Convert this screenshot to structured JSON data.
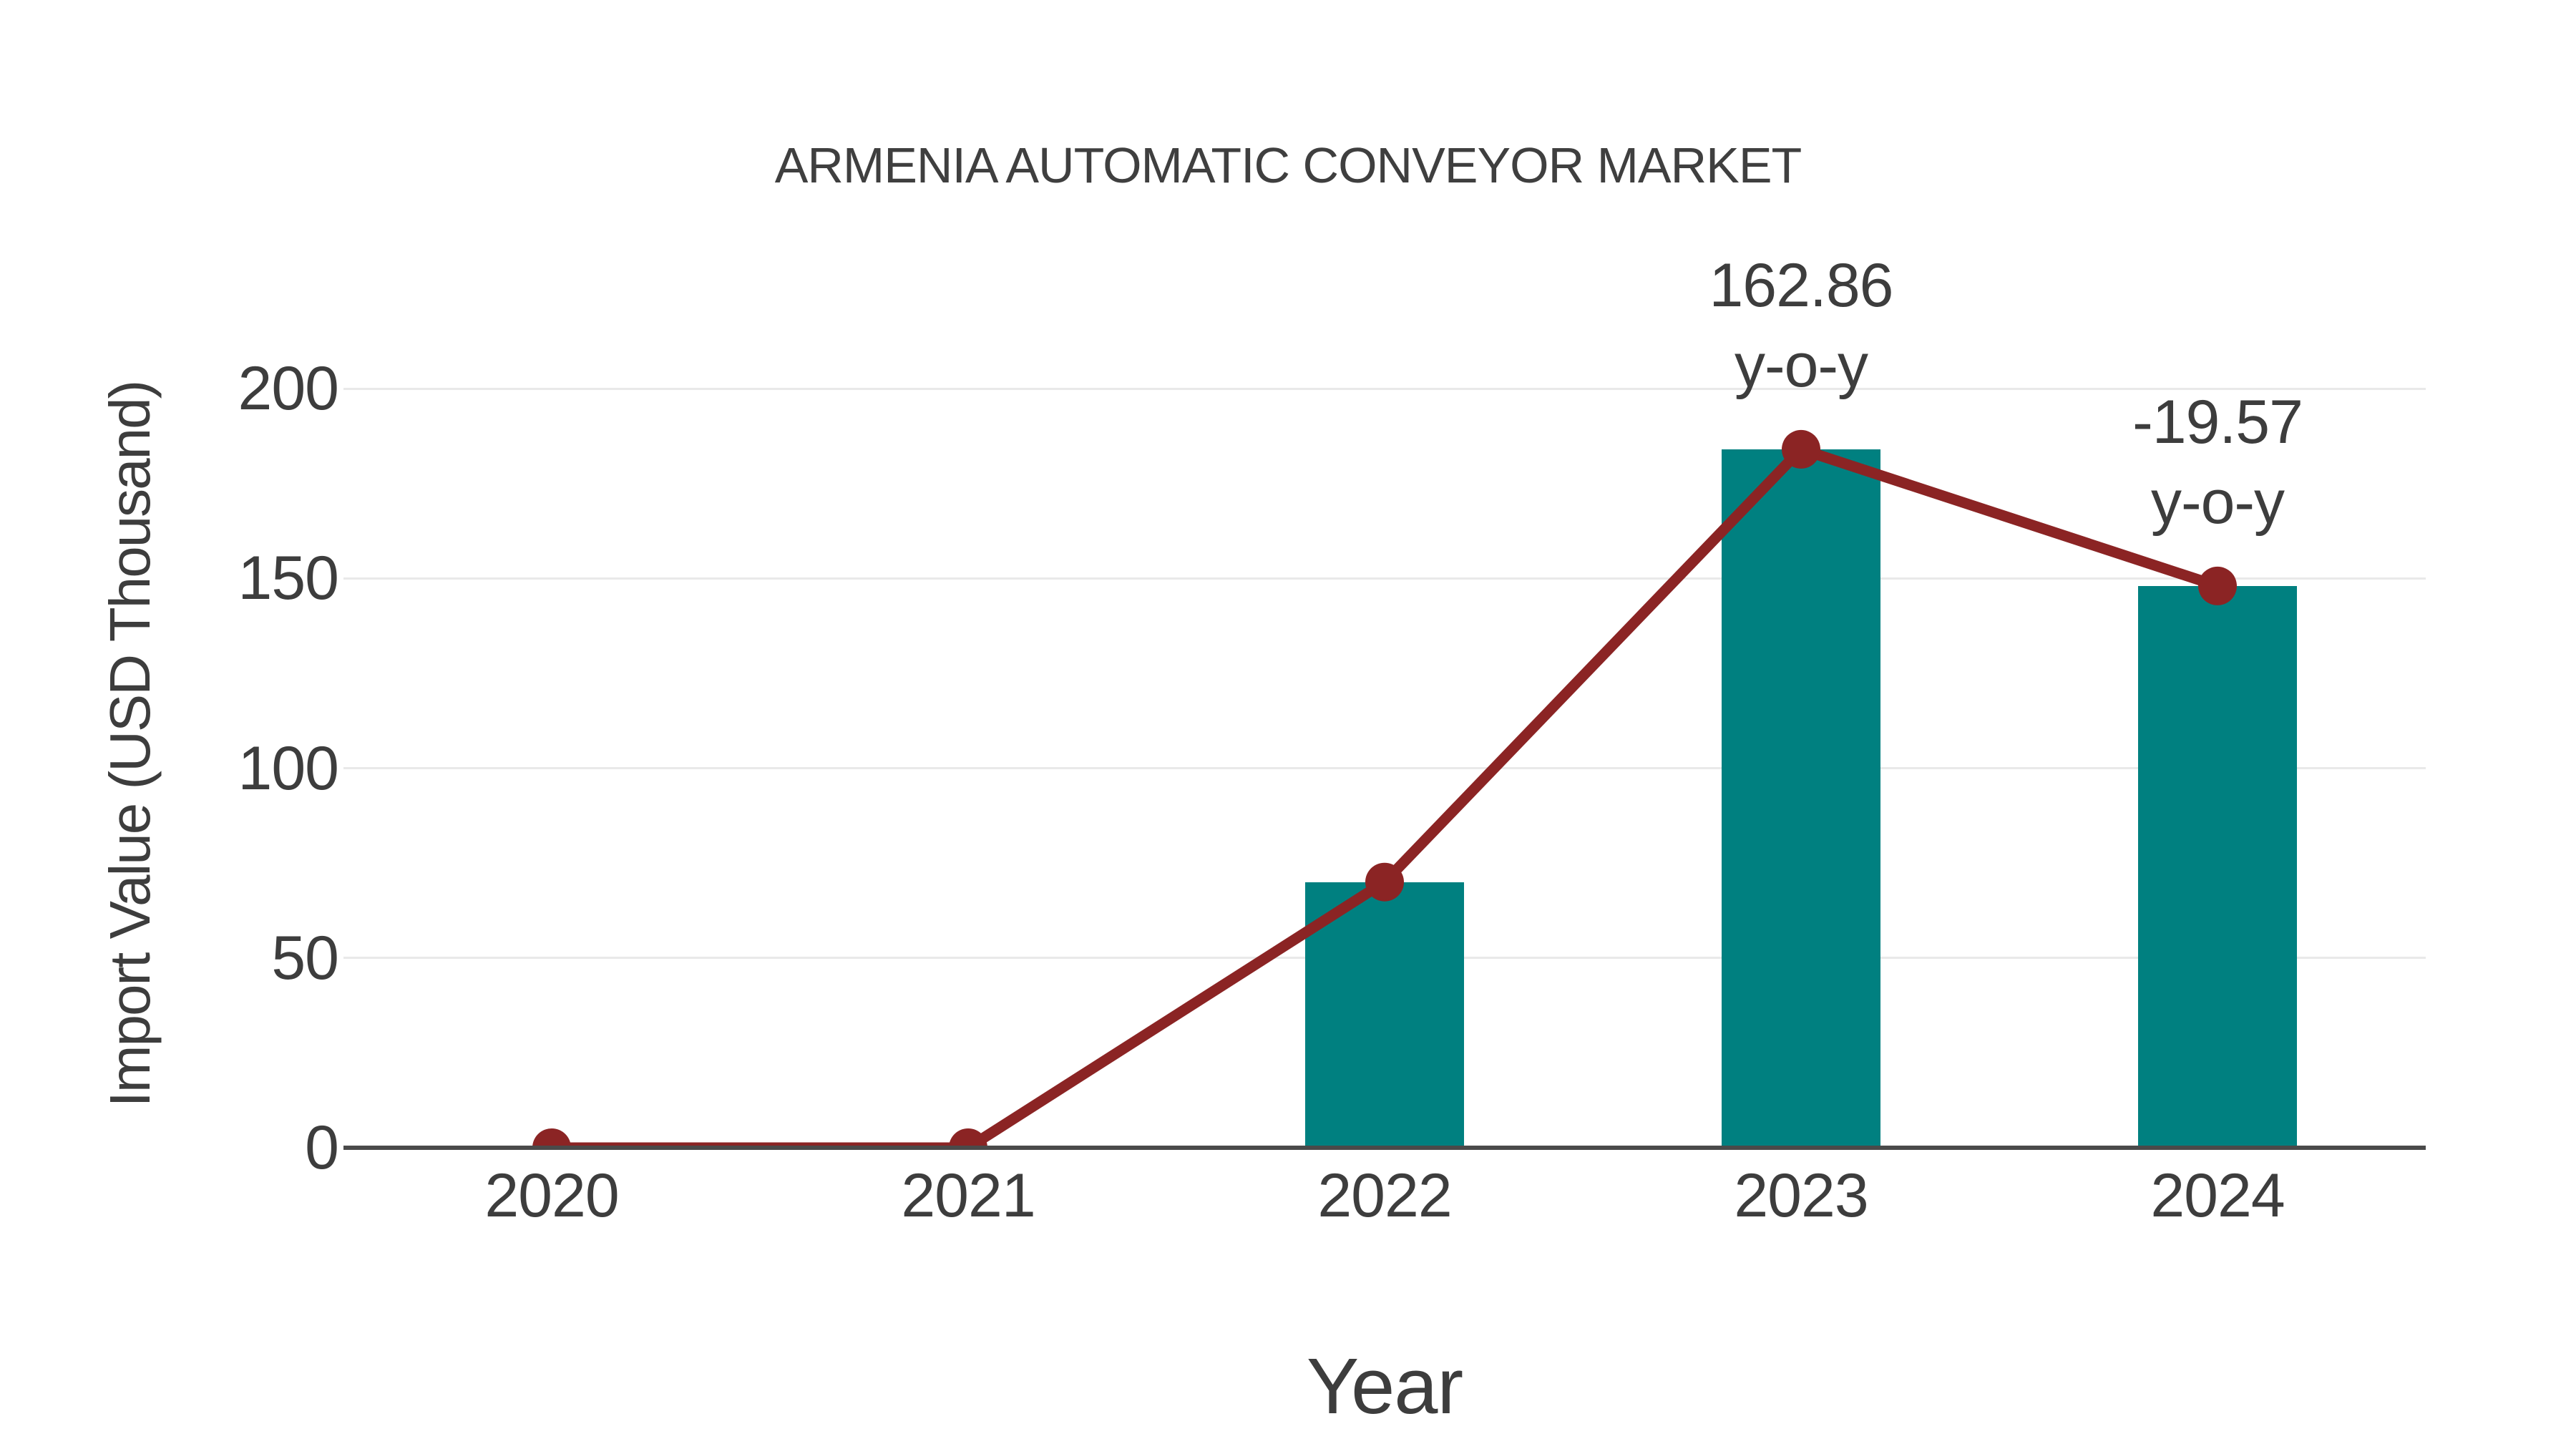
{
  "chart_data": {
    "type": "combo_bar_line",
    "title": "ARMENIA AUTOMATIC CONVEYOR MARKET",
    "xlabel": "Year",
    "ylabel": "Import Value (USD Thousand)",
    "categories": [
      "2020",
      "2021",
      "2022",
      "2023",
      "2024"
    ],
    "series": [
      {
        "name": "Import Value (bars)",
        "type": "bar",
        "values": [
          0,
          0,
          70,
          184,
          148
        ],
        "color": "#008080"
      },
      {
        "name": "Import Value (line)",
        "type": "line",
        "values": [
          0,
          0,
          70,
          184,
          148
        ],
        "color": "#8B2424"
      }
    ],
    "yticks": [
      0,
      50,
      100,
      150,
      200
    ],
    "ylim": [
      0,
      200
    ],
    "grid": true,
    "legend_position": "none",
    "annotations": [
      {
        "category": "2023",
        "lines": [
          "162.86",
          "y-o-y"
        ]
      },
      {
        "category": "2024",
        "lines": [
          "-19.57",
          "y-o-y"
        ]
      }
    ]
  },
  "style": {
    "background": "#ffffff",
    "bar_color": "#008080",
    "line_color": "#8B2424",
    "marker_color": "#8B2424",
    "grid_color": "#e9e9e9",
    "axis_color": "#4a4a4a",
    "text_color": "#3d3d3d",
    "title_color": "#3f3f3f"
  }
}
